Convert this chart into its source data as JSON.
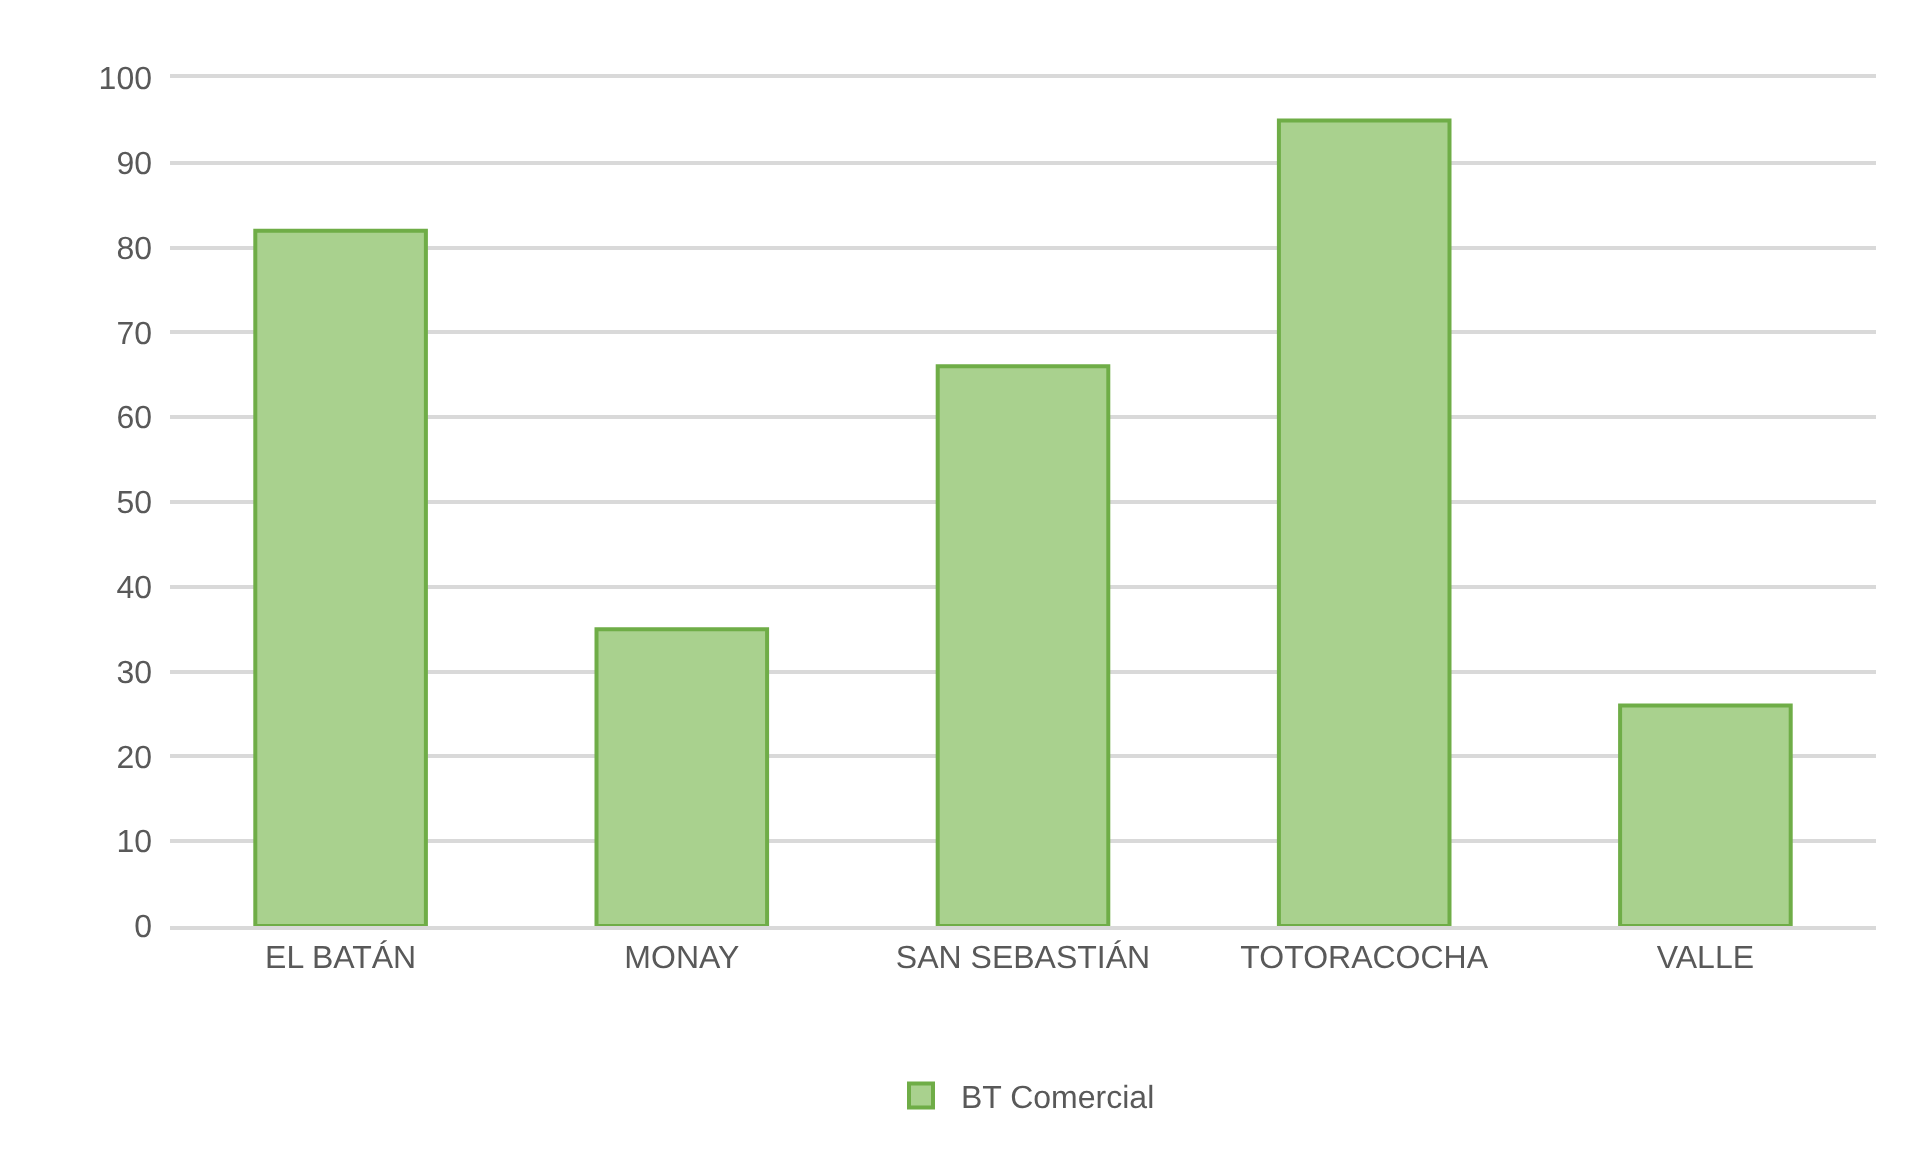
{
  "chart_data": {
    "type": "bar",
    "categories": [
      "EL BATÁN",
      "MONAY",
      "SAN SEBASTIÁN",
      "TOTORACOCHA",
      "VALLE"
    ],
    "series": [
      {
        "name": "BT Comercial",
        "color": "#a9d18e",
        "values": [
          82,
          35,
          66,
          95,
          26
        ]
      }
    ],
    "ylim": [
      0,
      100
    ],
    "yticks": [
      0,
      10,
      20,
      30,
      40,
      50,
      60,
      70,
      80,
      90,
      100
    ],
    "grid": "y",
    "legend": "bottom"
  }
}
